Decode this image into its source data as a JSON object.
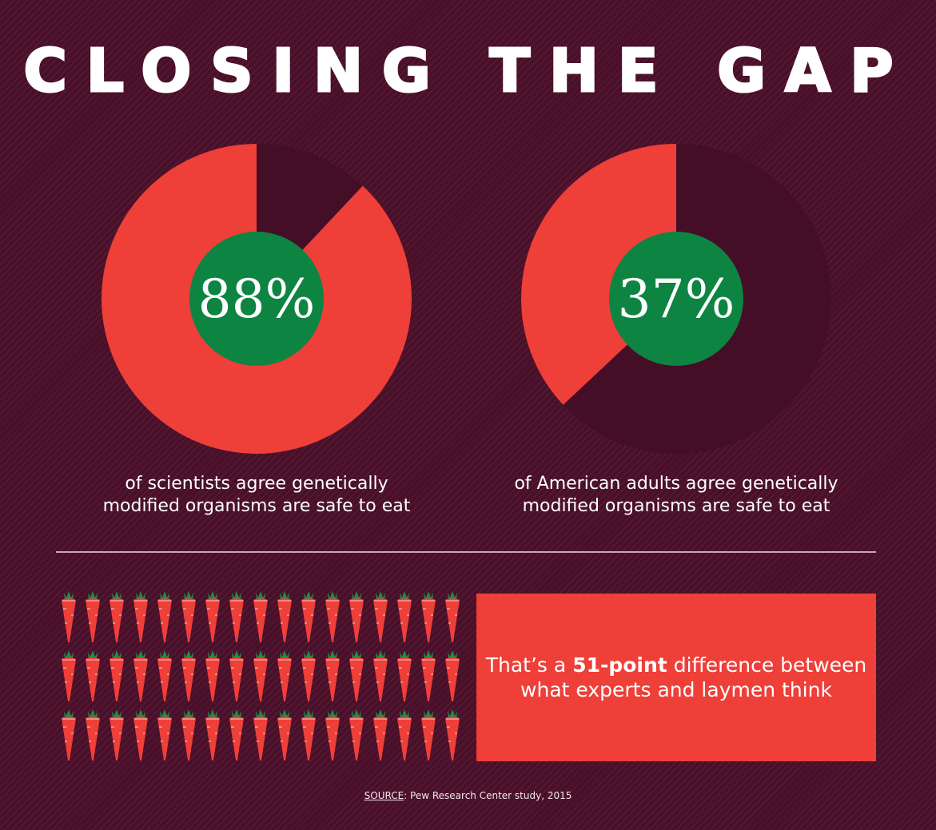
{
  "title": "CLOSING THE GAP",
  "colors": {
    "background": "#4a0f29",
    "pie_fill": "#ee3f38",
    "pie_remainder": "#450e27",
    "center_circle": "#0d8442",
    "callout_bg": "#ee3f38",
    "carrot_body": "#ee3f38",
    "carrot_leaves": "#1f8a4a"
  },
  "charts": [
    {
      "percent_label": "88%",
      "caption_line1": "of scientists agree genetically",
      "caption_line2": "modified organisms are safe to eat"
    },
    {
      "percent_label": "37%",
      "caption_line1": "of American adults agree genetically",
      "caption_line2": "modified organisms are safe to eat"
    }
  ],
  "callout": {
    "prefix": "That’s a ",
    "highlight": "51-point",
    "suffix": " difference between",
    "line2": "what experts and laymen think"
  },
  "source": {
    "label": "SOURCE",
    "text": ": Pew Research Center study, 2015"
  },
  "carrots": {
    "rows": 3,
    "columns": 17
  },
  "chart_data": [
    {
      "type": "pie",
      "title": "Scientists",
      "categories": [
        "Agree GMOs safe to eat",
        "Other"
      ],
      "values": [
        88,
        12
      ],
      "annotation": "88% of scientists agree genetically modified organisms are safe to eat"
    },
    {
      "type": "pie",
      "title": "American adults",
      "categories": [
        "Agree GMOs safe to eat",
        "Other"
      ],
      "values": [
        37,
        63
      ],
      "annotation": "37% of American adults agree genetically modified organisms are safe to eat"
    }
  ]
}
